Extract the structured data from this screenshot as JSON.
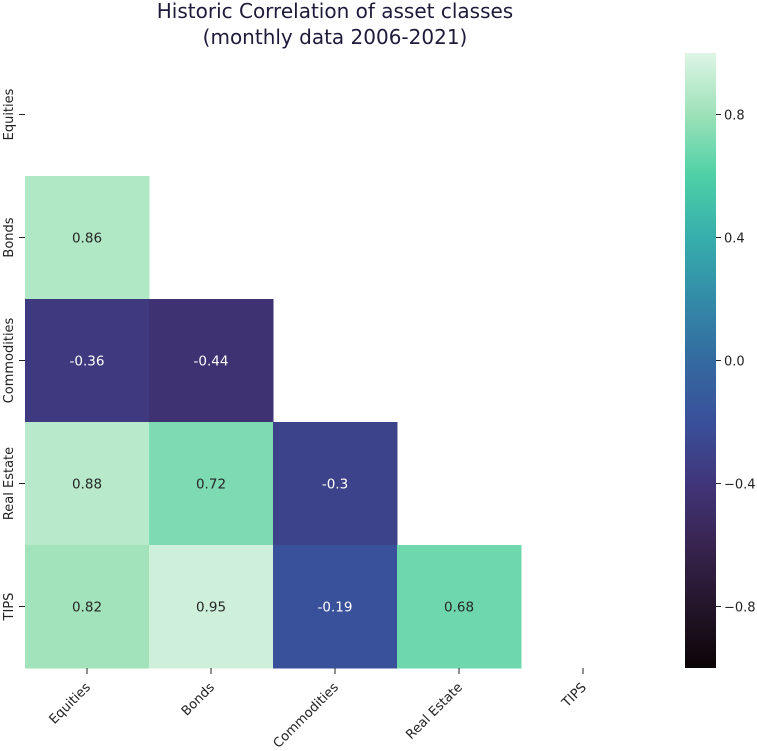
{
  "chart_data": {
    "type": "heatmap",
    "title": [
      "Historic Correlation of asset classes",
      "(monthly data 2006-2021)"
    ],
    "xlabels": [
      "Equities",
      "Bonds",
      "Commodities",
      "Real Estate",
      "TIPS"
    ],
    "ylabels": [
      "Equities",
      "Bonds",
      "Commodities",
      "Real Estate",
      "TIPS"
    ],
    "mask": "upper triangle incl. diagonal",
    "cells": [
      {
        "row": 1,
        "col": 0,
        "value": 0.86,
        "label": "0.86"
      },
      {
        "row": 2,
        "col": 0,
        "value": -0.36,
        "label": "-0.36"
      },
      {
        "row": 2,
        "col": 1,
        "value": -0.44,
        "label": "-0.44"
      },
      {
        "row": 3,
        "col": 0,
        "value": 0.88,
        "label": "0.88"
      },
      {
        "row": 3,
        "col": 1,
        "value": 0.72,
        "label": "0.72"
      },
      {
        "row": 3,
        "col": 2,
        "value": -0.3,
        "label": "-0.3"
      },
      {
        "row": 4,
        "col": 0,
        "value": 0.82,
        "label": "0.82"
      },
      {
        "row": 4,
        "col": 1,
        "value": 0.95,
        "label": "0.95"
      },
      {
        "row": 4,
        "col": 2,
        "value": -0.19,
        "label": "-0.19"
      },
      {
        "row": 4,
        "col": 3,
        "value": 0.68,
        "label": "0.68"
      }
    ],
    "vmin": -1,
    "vmax": 1,
    "colormap": "mako",
    "colorbar": {
      "ticks": [
        0.8,
        0.4,
        0.0,
        -0.4,
        -0.8
      ],
      "tick_labels": [
        "0.8",
        "0.4",
        "0.0",
        "−0.4",
        "−0.8"
      ]
    }
  }
}
